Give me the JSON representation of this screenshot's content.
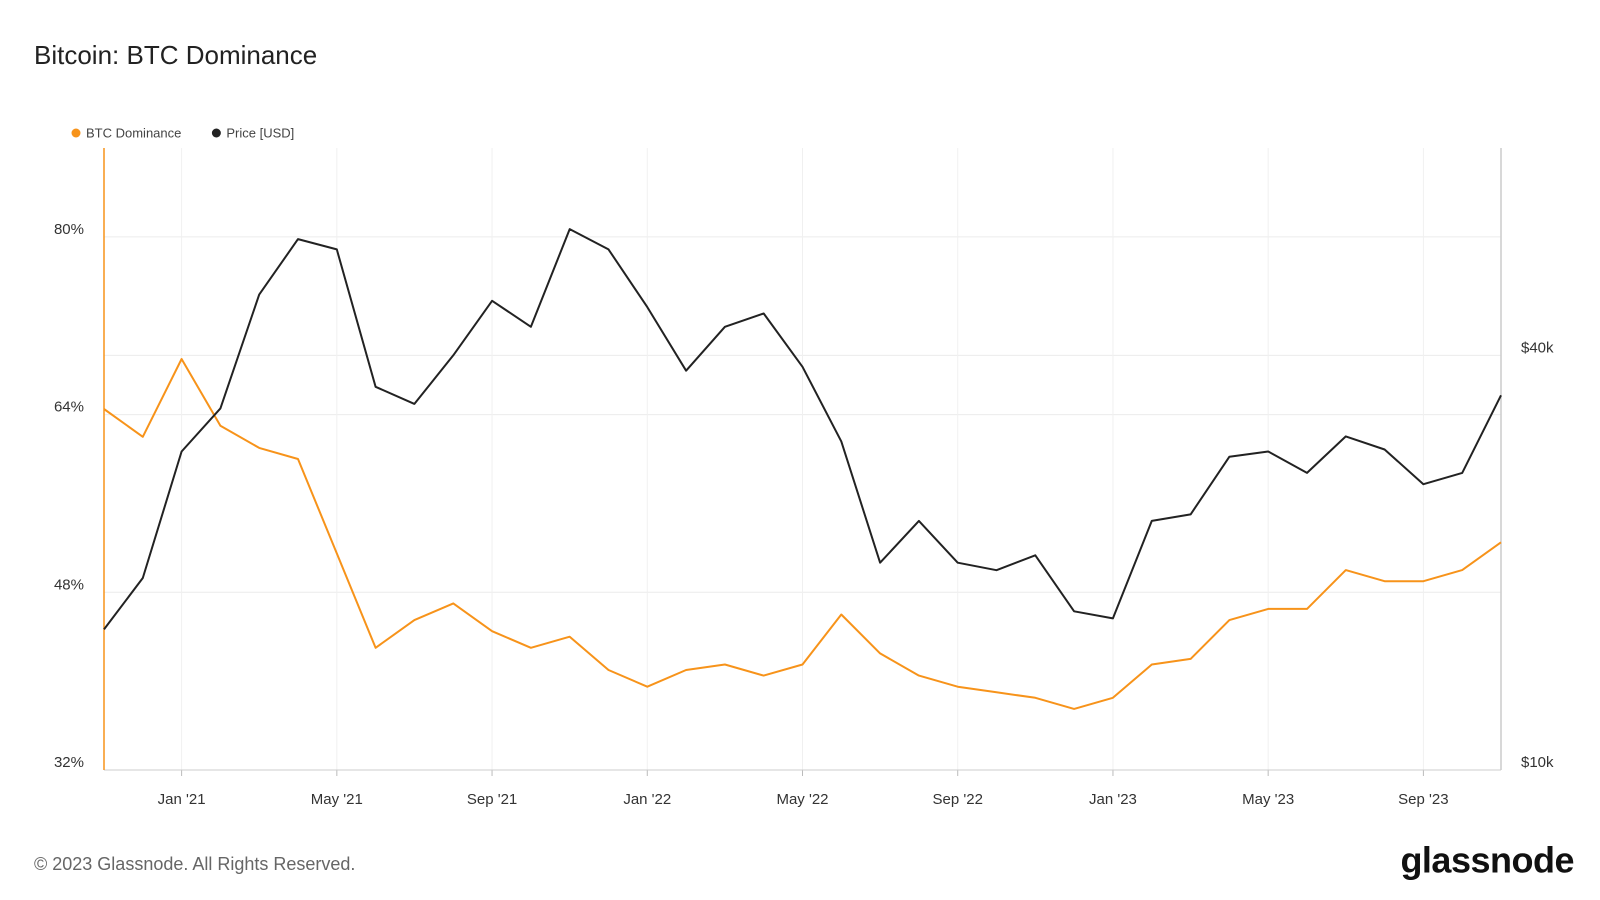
{
  "chart_data": {
    "type": "line",
    "title": "Bitcoin: BTC Dominance",
    "footer": "© 2023 Glassnode. All Rights Reserved.",
    "brand": "glassnode",
    "x": [
      "2020-11",
      "2020-12",
      "2021-01",
      "2021-02",
      "2021-03",
      "2021-04",
      "2021-05",
      "2021-06",
      "2021-07",
      "2021-08",
      "2021-09",
      "2021-10",
      "2021-11",
      "2021-12",
      "2022-01",
      "2022-02",
      "2022-03",
      "2022-04",
      "2022-05",
      "2022-06",
      "2022-07",
      "2022-08",
      "2022-09",
      "2022-10",
      "2022-11",
      "2022-12",
      "2023-01",
      "2023-02",
      "2023-03",
      "2023-04",
      "2023-05",
      "2023-06",
      "2023-07",
      "2023-08",
      "2023-09",
      "2023-10",
      "2023-11"
    ],
    "xlim": [
      "2020-11",
      "2023-11"
    ],
    "xticks": [
      {
        "value": "2021-01",
        "label": "Jan '21"
      },
      {
        "value": "2021-05",
        "label": "May '21"
      },
      {
        "value": "2021-09",
        "label": "Sep '21"
      },
      {
        "value": "2022-01",
        "label": "Jan '22"
      },
      {
        "value": "2022-05",
        "label": "May '22"
      },
      {
        "value": "2022-09",
        "label": "Sep '22"
      },
      {
        "value": "2023-01",
        "label": "Jan '23"
      },
      {
        "value": "2023-05",
        "label": "May '23"
      },
      {
        "value": "2023-09",
        "label": "Sep '23"
      }
    ],
    "series": [
      {
        "name": "BTC Dominance",
        "color": "#f7931a",
        "values": [
          64.5,
          62,
          69,
          63,
          61,
          60,
          51.5,
          43,
          45.5,
          47,
          44.5,
          43,
          44,
          41,
          39.5,
          41,
          41.5,
          40.5,
          41.5,
          46,
          42.5,
          40.5,
          39.5,
          39,
          38.5,
          37.5,
          38.5,
          41.5,
          42,
          45.5,
          46.5,
          46.5,
          50,
          49,
          49,
          50,
          52.5
        ]
      },
      {
        "name": "Price [USD]",
        "color": "#222222",
        "axis": "y2",
        "values": [
          16000,
          19000,
          29000,
          33500,
          49000,
          59000,
          57000,
          36000,
          34000,
          40000,
          48000,
          44000,
          61000,
          57000,
          47000,
          38000,
          44000,
          46000,
          38500,
          30000,
          20000,
          23000,
          20000,
          19500,
          20500,
          17000,
          16600,
          23000,
          23500,
          28500,
          29000,
          27000,
          30500,
          29200,
          26000,
          27000,
          35000
        ]
      }
    ],
    "ylim": [
      32,
      88
    ],
    "yticks": [
      {
        "value": 32,
        "label": "32%"
      },
      {
        "value": 48,
        "label": "48%"
      },
      {
        "value": 64,
        "label": "64%"
      },
      {
        "value": 80,
        "label": "80%"
      }
    ],
    "y2lim": [
      10000,
      80000
    ],
    "y2log": true,
    "y2ticks": [
      {
        "value": 10000,
        "label": "$10k"
      },
      {
        "value": 40000,
        "label": "$40k"
      }
    ],
    "grid": true,
    "legend": "top-left"
  }
}
